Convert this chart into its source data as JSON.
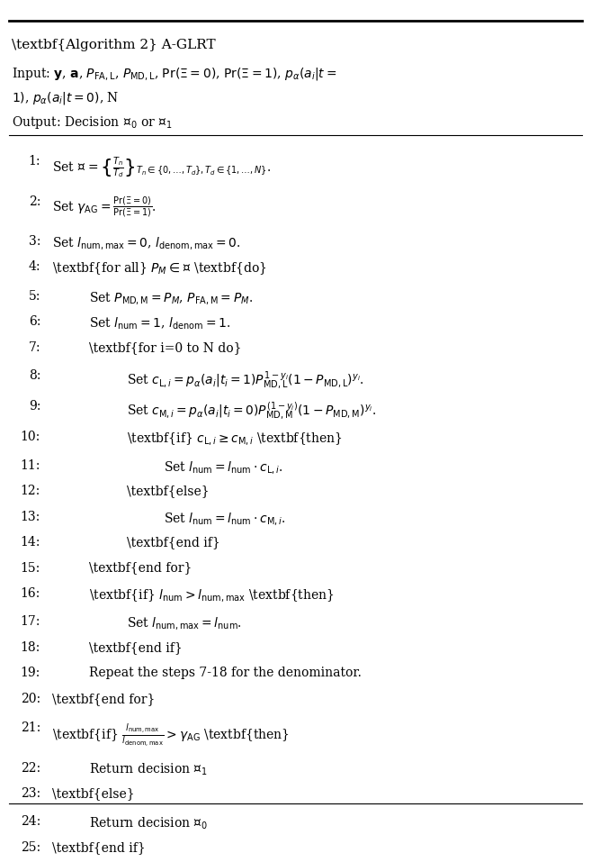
{
  "fig_width": 6.4,
  "fig_height": 9.34,
  "bg_color": "#ffffff",
  "title": "Algorithm 2 A-GLRT",
  "steps": [
    {
      "num": "1:",
      "indent": 0,
      "text": "Set $\\mathcal{P} = \\left\\{\\frac{T_n}{T_d}\\right\\}_{T_n \\in \\{0,\\ldots,T_d\\},T_d \\in \\{1,\\ldots,N\\}}$."
    },
    {
      "num": "2:",
      "indent": 0,
      "text": "Set $\\gamma_{\\mathrm{AG}} = \\frac{\\Pr(\\Xi=0)}{\\Pr(\\Xi=1)}$."
    },
    {
      "num": "3:",
      "indent": 0,
      "text": "Set $l_{\\mathrm{num,max}} = 0$, $l_{\\mathrm{denom,max}} = 0$."
    },
    {
      "num": "4:",
      "indent": 0,
      "text": "\\textbf{for all} $P_M \\in \\mathcal{P}$ \\textbf{do}"
    },
    {
      "num": "5:",
      "indent": 1,
      "text": "Set $P_{\\mathrm{MD,M}} = P_M$, $P_{\\mathrm{FA,M}} = P_M$."
    },
    {
      "num": "6:",
      "indent": 1,
      "text": "Set $l_{\\mathrm{num}} = 1$, $l_{\\mathrm{denom}} = 1$."
    },
    {
      "num": "7:",
      "indent": 1,
      "text": "\\textbf{for i=0 to N do}"
    },
    {
      "num": "8:",
      "indent": 2,
      "text": "Set $c_{\\mathrm{L},i} = p_{\\alpha}(a_i|t_i=1)P_{\\mathrm{MD,L}}^{1-y_i}(1-P_{\\mathrm{MD,L}})^{y_i}$."
    },
    {
      "num": "9:",
      "indent": 2,
      "text": "Set $c_{\\mathrm{M},i} = p_{\\alpha}(a_i|t_i=0)P_{\\mathrm{MD,M}}^{(1-y_i)}(1-P_{\\mathrm{MD,M}})^{y_i}$."
    },
    {
      "num": "10:",
      "indent": 2,
      "text": "\\textbf{if} $c_{\\mathrm{L},i} \\geq c_{\\mathrm{M},i}$ \\textbf{then}"
    },
    {
      "num": "11:",
      "indent": 3,
      "text": "Set $l_{\\mathrm{num}} = l_{\\mathrm{num}} \\cdot c_{\\mathrm{L},i}$."
    },
    {
      "num": "12:",
      "indent": 2,
      "text": "\\textbf{else}"
    },
    {
      "num": "13:",
      "indent": 3,
      "text": "Set $l_{\\mathrm{num}} = l_{\\mathrm{num}} \\cdot c_{\\mathrm{M},i}$."
    },
    {
      "num": "14:",
      "indent": 2,
      "text": "\\textbf{end if}"
    },
    {
      "num": "15:",
      "indent": 1,
      "text": "\\textbf{end for}"
    },
    {
      "num": "16:",
      "indent": 1,
      "text": "\\textbf{if} $l_{\\mathrm{num}} > l_{\\mathrm{num,max}}$ \\textbf{then}"
    },
    {
      "num": "17:",
      "indent": 2,
      "text": "Set $l_{\\mathrm{num,max}} = l_{\\mathrm{num}}$."
    },
    {
      "num": "18:",
      "indent": 1,
      "text": "\\textbf{end if}"
    },
    {
      "num": "19:",
      "indent": 1,
      "text": "Repeat the steps 7-18 for the denominator."
    },
    {
      "num": "20:",
      "indent": 0,
      "text": "\\textbf{end for}"
    },
    {
      "num": "21:",
      "indent": 0,
      "text": "\\textbf{if} $\\frac{l_{\\mathrm{num,max}}}{l_{\\mathrm{denom,max}}} > \\gamma_{\\mathrm{AG}}$ \\textbf{then}"
    },
    {
      "num": "22:",
      "indent": 1,
      "text": "Return decision $\\mathcal{H}_1$"
    },
    {
      "num": "23:",
      "indent": 0,
      "text": "\\textbf{else}"
    },
    {
      "num": "24:",
      "indent": 1,
      "text": "Return decision $\\mathcal{H}_0$"
    },
    {
      "num": "25:",
      "indent": 0,
      "text": "\\textbf{end if}"
    }
  ],
  "line_heights": {
    "1:": 1.55,
    "2:": 1.55,
    "3:": 1.0,
    "4:": 1.15,
    "5:": 1.0,
    "6:": 1.0,
    "7:": 1.1,
    "8:": 1.2,
    "9:": 1.2,
    "10:": 1.1,
    "11:": 1.0,
    "12:": 1.0,
    "13:": 1.0,
    "14:": 1.0,
    "15:": 1.0,
    "16:": 1.1,
    "17:": 1.0,
    "18:": 1.0,
    "19:": 1.0,
    "20:": 1.15,
    "21:": 1.55,
    "22:": 1.0,
    "23:": 1.1,
    "24:": 1.0,
    "25:": 1.0
  }
}
